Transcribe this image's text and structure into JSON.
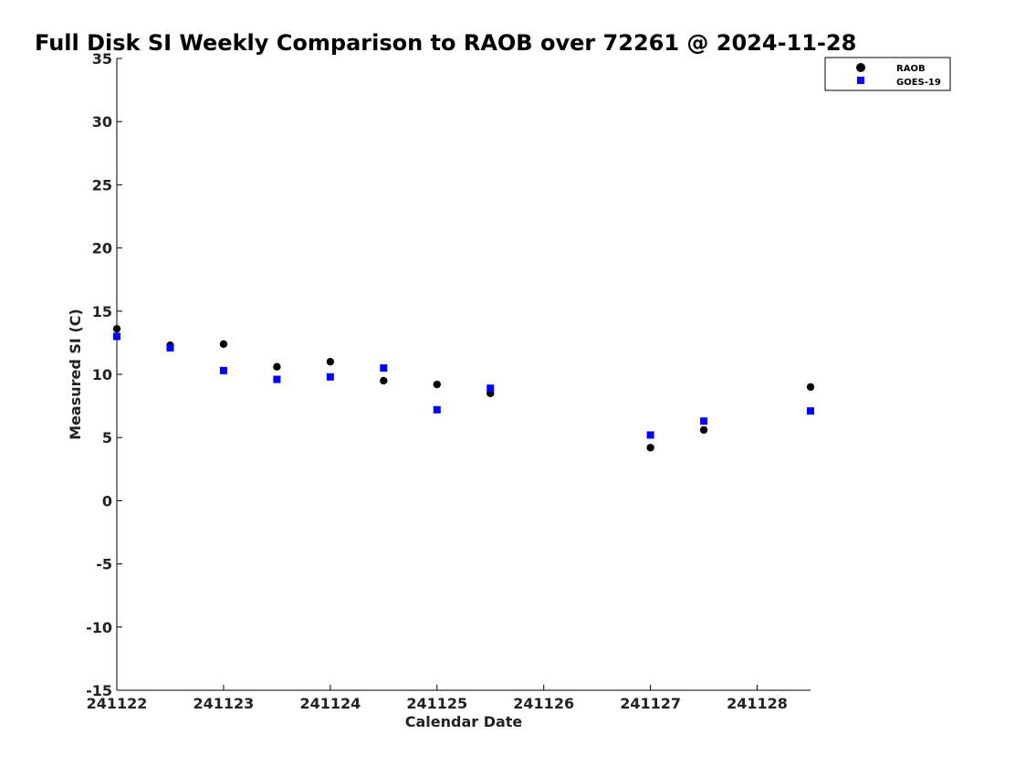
{
  "chart_data": {
    "type": "scatter",
    "title": "Full Disk SI Weekly Comparison to RAOB over 72261 @ 2024-11-28",
    "xlabel": "Calendar Date",
    "ylabel": "Measured SI (C)",
    "xlim": [
      "2024-11-22",
      "2024-11-28 12:00"
    ],
    "ylim": [
      -15,
      35
    ],
    "grid": false,
    "legend_position": "top-right",
    "x_tick_labels": [
      "241122",
      "241123",
      "241124",
      "241125",
      "241126",
      "241127",
      "241128"
    ],
    "y_ticks": [
      -15,
      -10,
      -5,
      0,
      5,
      10,
      15,
      20,
      25,
      30,
      35
    ],
    "x": [
      "2024-11-22 00:00",
      "2024-11-22 12:00",
      "2024-11-23 00:00",
      "2024-11-23 12:00",
      "2024-11-24 00:00",
      "2024-11-24 12:00",
      "2024-11-25 00:00",
      "2024-11-25 12:00",
      "2024-11-27 00:00",
      "2024-11-27 12:00",
      "2024-11-28 12:00"
    ],
    "series": [
      {
        "name": "RAOB",
        "marker": "circle",
        "color": "#000000",
        "values": [
          13.6,
          12.3,
          12.4,
          10.6,
          11.0,
          9.5,
          9.2,
          8.5,
          4.2,
          5.6,
          9.0
        ]
      },
      {
        "name": "GOES-19",
        "marker": "square",
        "color": "#0000ff",
        "values": [
          13.0,
          12.1,
          10.3,
          9.6,
          9.8,
          10.5,
          7.2,
          8.9,
          5.2,
          6.3,
          7.1
        ]
      }
    ]
  }
}
